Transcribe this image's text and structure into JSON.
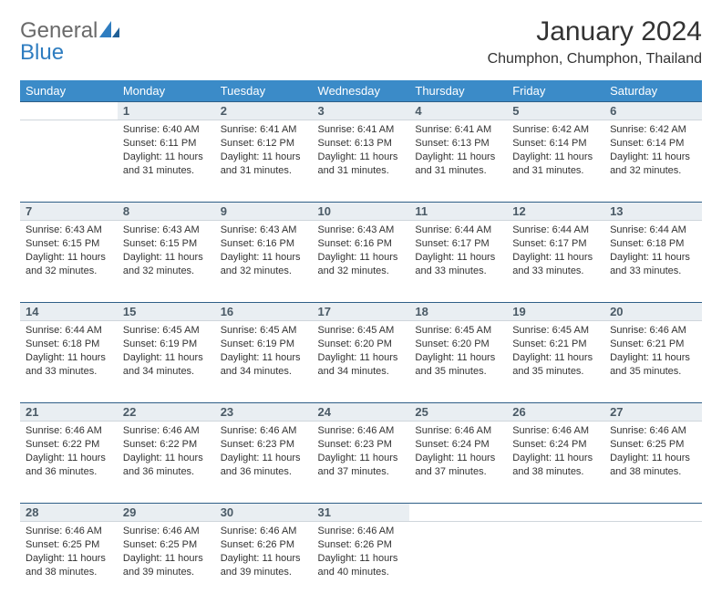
{
  "logo": {
    "general": "General",
    "blue": "Blue"
  },
  "title": "January 2024",
  "location": "Chumphon, Chumphon, Thailand",
  "colors": {
    "header_bg": "#3b8bc8",
    "header_text": "#ffffff",
    "daynum_bg": "#e9eef2",
    "daynum_border_top": "#2f5f87",
    "body_text": "#333333"
  },
  "day_headers": [
    "Sunday",
    "Monday",
    "Tuesday",
    "Wednesday",
    "Thursday",
    "Friday",
    "Saturday"
  ],
  "weeks": [
    {
      "nums": [
        "",
        "1",
        "2",
        "3",
        "4",
        "5",
        "6"
      ],
      "cells": [
        null,
        {
          "sunrise": "6:40 AM",
          "sunset": "6:11 PM",
          "daylight": "11 hours and 31 minutes."
        },
        {
          "sunrise": "6:41 AM",
          "sunset": "6:12 PM",
          "daylight": "11 hours and 31 minutes."
        },
        {
          "sunrise": "6:41 AM",
          "sunset": "6:13 PM",
          "daylight": "11 hours and 31 minutes."
        },
        {
          "sunrise": "6:41 AM",
          "sunset": "6:13 PM",
          "daylight": "11 hours and 31 minutes."
        },
        {
          "sunrise": "6:42 AM",
          "sunset": "6:14 PM",
          "daylight": "11 hours and 31 minutes."
        },
        {
          "sunrise": "6:42 AM",
          "sunset": "6:14 PM",
          "daylight": "11 hours and 32 minutes."
        }
      ]
    },
    {
      "nums": [
        "7",
        "8",
        "9",
        "10",
        "11",
        "12",
        "13"
      ],
      "cells": [
        {
          "sunrise": "6:43 AM",
          "sunset": "6:15 PM",
          "daylight": "11 hours and 32 minutes."
        },
        {
          "sunrise": "6:43 AM",
          "sunset": "6:15 PM",
          "daylight": "11 hours and 32 minutes."
        },
        {
          "sunrise": "6:43 AM",
          "sunset": "6:16 PM",
          "daylight": "11 hours and 32 minutes."
        },
        {
          "sunrise": "6:43 AM",
          "sunset": "6:16 PM",
          "daylight": "11 hours and 32 minutes."
        },
        {
          "sunrise": "6:44 AM",
          "sunset": "6:17 PM",
          "daylight": "11 hours and 33 minutes."
        },
        {
          "sunrise": "6:44 AM",
          "sunset": "6:17 PM",
          "daylight": "11 hours and 33 minutes."
        },
        {
          "sunrise": "6:44 AM",
          "sunset": "6:18 PM",
          "daylight": "11 hours and 33 minutes."
        }
      ]
    },
    {
      "nums": [
        "14",
        "15",
        "16",
        "17",
        "18",
        "19",
        "20"
      ],
      "cells": [
        {
          "sunrise": "6:44 AM",
          "sunset": "6:18 PM",
          "daylight": "11 hours and 33 minutes."
        },
        {
          "sunrise": "6:45 AM",
          "sunset": "6:19 PM",
          "daylight": "11 hours and 34 minutes."
        },
        {
          "sunrise": "6:45 AM",
          "sunset": "6:19 PM",
          "daylight": "11 hours and 34 minutes."
        },
        {
          "sunrise": "6:45 AM",
          "sunset": "6:20 PM",
          "daylight": "11 hours and 34 minutes."
        },
        {
          "sunrise": "6:45 AM",
          "sunset": "6:20 PM",
          "daylight": "11 hours and 35 minutes."
        },
        {
          "sunrise": "6:45 AM",
          "sunset": "6:21 PM",
          "daylight": "11 hours and 35 minutes."
        },
        {
          "sunrise": "6:46 AM",
          "sunset": "6:21 PM",
          "daylight": "11 hours and 35 minutes."
        }
      ]
    },
    {
      "nums": [
        "21",
        "22",
        "23",
        "24",
        "25",
        "26",
        "27"
      ],
      "cells": [
        {
          "sunrise": "6:46 AM",
          "sunset": "6:22 PM",
          "daylight": "11 hours and 36 minutes."
        },
        {
          "sunrise": "6:46 AM",
          "sunset": "6:22 PM",
          "daylight": "11 hours and 36 minutes."
        },
        {
          "sunrise": "6:46 AM",
          "sunset": "6:23 PM",
          "daylight": "11 hours and 36 minutes."
        },
        {
          "sunrise": "6:46 AM",
          "sunset": "6:23 PM",
          "daylight": "11 hours and 37 minutes."
        },
        {
          "sunrise": "6:46 AM",
          "sunset": "6:24 PM",
          "daylight": "11 hours and 37 minutes."
        },
        {
          "sunrise": "6:46 AM",
          "sunset": "6:24 PM",
          "daylight": "11 hours and 38 minutes."
        },
        {
          "sunrise": "6:46 AM",
          "sunset": "6:25 PM",
          "daylight": "11 hours and 38 minutes."
        }
      ]
    },
    {
      "nums": [
        "28",
        "29",
        "30",
        "31",
        "",
        "",
        ""
      ],
      "cells": [
        {
          "sunrise": "6:46 AM",
          "sunset": "6:25 PM",
          "daylight": "11 hours and 38 minutes."
        },
        {
          "sunrise": "6:46 AM",
          "sunset": "6:25 PM",
          "daylight": "11 hours and 39 minutes."
        },
        {
          "sunrise": "6:46 AM",
          "sunset": "6:26 PM",
          "daylight": "11 hours and 39 minutes."
        },
        {
          "sunrise": "6:46 AM",
          "sunset": "6:26 PM",
          "daylight": "11 hours and 40 minutes."
        },
        null,
        null,
        null
      ]
    }
  ],
  "labels": {
    "sunrise": "Sunrise:",
    "sunset": "Sunset:",
    "daylight": "Daylight:"
  }
}
